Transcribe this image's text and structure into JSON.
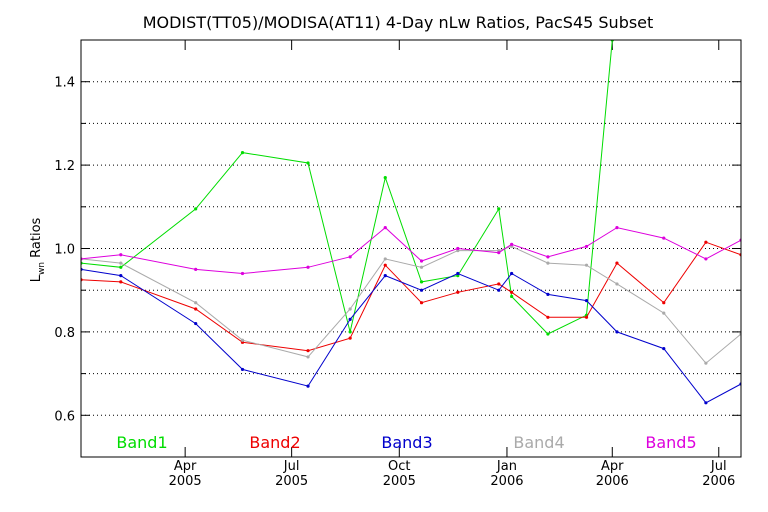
{
  "chart_data": {
    "type": "line",
    "title": "MODIST(TT05)/MODISA(AT11) 4-Day nLw Ratios, PacS45 Subset",
    "ylabel": "L",
    "ylabel_sub": "wn",
    "ylabel_suffix": " Ratios",
    "xlabel": "",
    "ylim": [
      0.5,
      1.5
    ],
    "yticks": [
      0.6,
      0.8,
      1.0,
      1.2,
      1.4
    ],
    "ytick_labels": [
      "0.6",
      "0.8",
      "1.0",
      "1.2",
      "1.4"
    ],
    "yminor": [
      0.5,
      0.7,
      0.9,
      1.1,
      1.3,
      1.5
    ],
    "xlim": [
      "2005-01-02",
      "2006-07-20"
    ],
    "xticks": [
      {
        "date": "2005-04-01",
        "month": "Apr",
        "year": "2005"
      },
      {
        "date": "2005-07-01",
        "month": "Jul",
        "year": "2005"
      },
      {
        "date": "2005-10-01",
        "month": "Oct",
        "year": "2005"
      },
      {
        "date": "2006-01-01",
        "month": "Jan",
        "year": "2006"
      },
      {
        "date": "2006-04-01",
        "month": "Apr",
        "year": "2006"
      },
      {
        "date": "2006-07-01",
        "month": "Jul",
        "year": "2006"
      }
    ],
    "grid": true,
    "legend_position": "bottom",
    "series": [
      {
        "name": "Band1",
        "color": "#00dd00",
        "points": [
          [
            "2005-01-02",
            0.965
          ],
          [
            "2005-02-05",
            0.955
          ],
          [
            "2005-04-10",
            1.095
          ],
          [
            "2005-05-20",
            1.23
          ],
          [
            "2005-07-15",
            1.205
          ],
          [
            "2005-08-20",
            0.8
          ],
          [
            "2005-09-19",
            1.17
          ],
          [
            "2005-10-20",
            0.92
          ],
          [
            "2005-11-20",
            0.935
          ],
          [
            "2005-12-25",
            1.095
          ],
          [
            "2006-01-05",
            0.885
          ],
          [
            "2006-02-05",
            0.795
          ],
          [
            "2006-03-10",
            0.84
          ],
          [
            "2006-04-01",
            1.5
          ]
        ]
      },
      {
        "name": "Band2",
        "color": "#ee0000",
        "points": [
          [
            "2005-01-02",
            0.925
          ],
          [
            "2005-02-05",
            0.92
          ],
          [
            "2005-04-10",
            0.855
          ],
          [
            "2005-05-20",
            0.775
          ],
          [
            "2005-07-15",
            0.755
          ],
          [
            "2005-08-20",
            0.785
          ],
          [
            "2005-09-19",
            0.96
          ],
          [
            "2005-10-20",
            0.87
          ],
          [
            "2005-11-20",
            0.895
          ],
          [
            "2005-12-25",
            0.915
          ],
          [
            "2006-01-05",
            0.895
          ],
          [
            "2006-02-05",
            0.835
          ],
          [
            "2006-03-10",
            0.835
          ],
          [
            "2006-04-05",
            0.965
          ],
          [
            "2006-05-15",
            0.87
          ],
          [
            "2006-06-20",
            1.015
          ],
          [
            "2006-07-20",
            0.985
          ]
        ]
      },
      {
        "name": "Band3",
        "color": "#0000cc",
        "points": [
          [
            "2005-01-02",
            0.95
          ],
          [
            "2005-02-05",
            0.935
          ],
          [
            "2005-04-10",
            0.82
          ],
          [
            "2005-05-20",
            0.71
          ],
          [
            "2005-07-15",
            0.67
          ],
          [
            "2005-08-20",
            0.83
          ],
          [
            "2005-09-19",
            0.935
          ],
          [
            "2005-10-20",
            0.9
          ],
          [
            "2005-11-20",
            0.94
          ],
          [
            "2005-12-25",
            0.9
          ],
          [
            "2006-01-05",
            0.94
          ],
          [
            "2006-02-05",
            0.89
          ],
          [
            "2006-03-10",
            0.875
          ],
          [
            "2006-04-05",
            0.8
          ],
          [
            "2006-05-15",
            0.76
          ],
          [
            "2006-06-20",
            0.63
          ],
          [
            "2006-07-20",
            0.675
          ]
        ]
      },
      {
        "name": "Band4",
        "color": "#aaaaaa",
        "points": [
          [
            "2005-01-02",
            0.975
          ],
          [
            "2005-02-05",
            0.965
          ],
          [
            "2005-04-10",
            0.87
          ],
          [
            "2005-05-20",
            0.78
          ],
          [
            "2005-07-15",
            0.74
          ],
          [
            "2005-08-20",
            0.855
          ],
          [
            "2005-09-19",
            0.975
          ],
          [
            "2005-10-20",
            0.955
          ],
          [
            "2005-11-20",
            0.995
          ],
          [
            "2005-12-25",
            0.995
          ],
          [
            "2006-01-05",
            1.005
          ],
          [
            "2006-02-05",
            0.965
          ],
          [
            "2006-03-10",
            0.96
          ],
          [
            "2006-04-05",
            0.915
          ],
          [
            "2006-05-15",
            0.845
          ],
          [
            "2006-06-20",
            0.725
          ],
          [
            "2006-07-20",
            0.795
          ]
        ]
      },
      {
        "name": "Band5",
        "color": "#dd00dd",
        "points": [
          [
            "2005-01-02",
            0.975
          ],
          [
            "2005-02-05",
            0.985
          ],
          [
            "2005-04-10",
            0.95
          ],
          [
            "2005-05-20",
            0.94
          ],
          [
            "2005-07-15",
            0.955
          ],
          [
            "2005-08-20",
            0.98
          ],
          [
            "2005-09-19",
            1.05
          ],
          [
            "2005-10-20",
            0.97
          ],
          [
            "2005-11-20",
            1.0
          ],
          [
            "2005-12-25",
            0.99
          ],
          [
            "2006-01-05",
            1.01
          ],
          [
            "2006-02-05",
            0.98
          ],
          [
            "2006-03-10",
            1.005
          ],
          [
            "2006-04-05",
            1.05
          ],
          [
            "2006-05-15",
            1.025
          ],
          [
            "2006-06-20",
            0.975
          ],
          [
            "2006-07-20",
            1.02
          ]
        ]
      }
    ]
  }
}
